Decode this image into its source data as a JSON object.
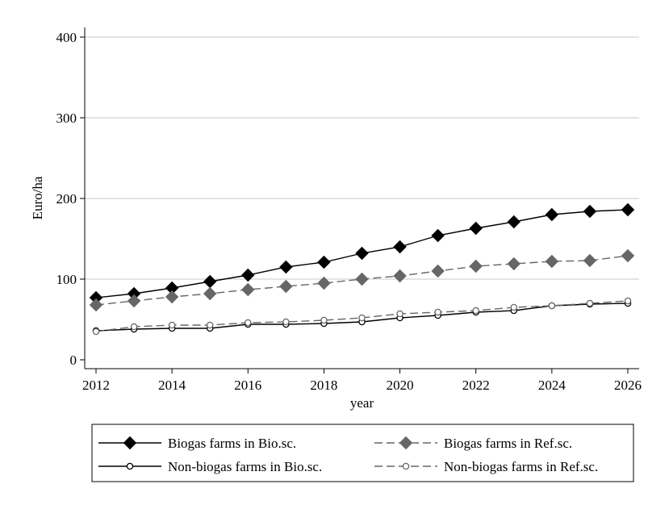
{
  "chart_data": {
    "type": "line",
    "xlabel": "year",
    "ylabel": "Euro/ha",
    "xlim": [
      2012,
      2026
    ],
    "ylim": [
      0,
      400
    ],
    "x_ticks": [
      2012,
      2014,
      2016,
      2018,
      2020,
      2022,
      2024,
      2026
    ],
    "y_ticks": [
      0,
      100,
      200,
      300,
      400
    ],
    "grid": "horizontal",
    "legend_position": "bottom",
    "x": [
      2012,
      2013,
      2014,
      2015,
      2016,
      2017,
      2018,
      2019,
      2020,
      2021,
      2022,
      2023,
      2024,
      2025,
      2026
    ],
    "series": [
      {
        "name": "Biogas farms in Bio.sc.",
        "color": "#000000",
        "line": "solid",
        "marker": "filled-diamond",
        "values": [
          77,
          82,
          89,
          97,
          105,
          115,
          121,
          132,
          140,
          154,
          163,
          171,
          180,
          184,
          186
        ]
      },
      {
        "name": "Biogas farms in Ref.sc.",
        "color": "#666666",
        "line": "dashed",
        "marker": "filled-diamond",
        "values": [
          68,
          73,
          78,
          82,
          87,
          91,
          95,
          100,
          104,
          110,
          116,
          119,
          122,
          123,
          129
        ]
      },
      {
        "name": "Non-biogas farms in Bio.sc.",
        "color": "#000000",
        "line": "solid",
        "marker": "hollow-circle",
        "values": [
          36,
          38,
          39,
          39,
          44,
          44,
          45,
          47,
          52,
          55,
          59,
          61,
          67,
          69,
          70
        ]
      },
      {
        "name": "Non-biogas farms in Ref.sc.",
        "color": "#666666",
        "line": "dashed",
        "marker": "hollow-circle",
        "values": [
          35,
          41,
          43,
          43,
          46,
          47,
          49,
          52,
          57,
          59,
          61,
          65,
          67,
          70,
          73
        ]
      }
    ]
  }
}
